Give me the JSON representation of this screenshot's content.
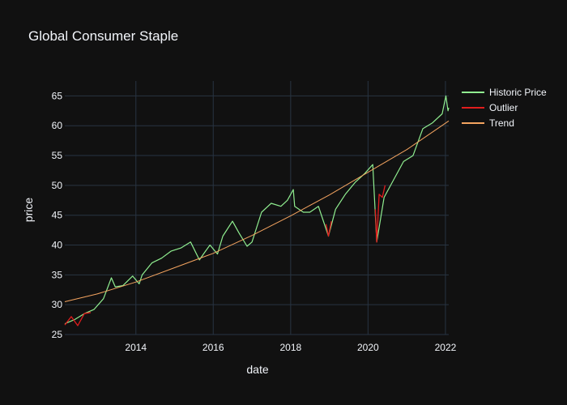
{
  "chart_data": {
    "type": "line",
    "title": "Global Consumer Staple",
    "xlabel": "date",
    "ylabel": "price",
    "x_ticks": [
      "2014",
      "2016",
      "2018",
      "2020",
      "2022"
    ],
    "y_ticks": [
      25,
      30,
      35,
      40,
      45,
      50,
      55,
      60,
      65
    ],
    "xlim": [
      "2012-03-01",
      "2022-02-01"
    ],
    "ylim": [
      25,
      67.5
    ],
    "grid": true,
    "legend_position": "top-right",
    "series": [
      {
        "name": "Historic Price",
        "color": "#90ee90",
        "x": [
          "2012-03-01",
          "2012-06-01",
          "2012-09-01",
          "2012-12-01",
          "2013-03-01",
          "2013-05-15",
          "2013-06-20",
          "2013-09-01",
          "2013-12-01",
          "2014-02-01",
          "2014-03-01",
          "2014-06-01",
          "2014-09-01",
          "2014-12-01",
          "2015-03-01",
          "2015-06-01",
          "2015-08-24",
          "2015-10-01",
          "2015-12-01",
          "2016-02-10",
          "2016-04-01",
          "2016-07-01",
          "2016-09-01",
          "2016-11-15",
          "2017-01-01",
          "2017-04-01",
          "2017-07-01",
          "2017-10-01",
          "2017-12-01",
          "2018-01-26",
          "2018-02-08",
          "2018-05-01",
          "2018-07-01",
          "2018-09-20",
          "2018-12-24",
          "2019-03-01",
          "2019-06-01",
          "2019-09-01",
          "2019-12-01",
          "2020-02-15",
          "2020-03-23",
          "2020-06-01",
          "2020-09-01",
          "2020-12-01",
          "2021-03-01",
          "2021-06-01",
          "2021-09-01",
          "2021-12-01",
          "2022-01-05",
          "2022-01-25",
          "2022-02-01"
        ],
        "y": [
          26.8,
          27.5,
          28.5,
          29.2,
          31.0,
          34.5,
          33.0,
          33.2,
          34.8,
          33.5,
          35.0,
          37.0,
          37.8,
          39.0,
          39.5,
          40.5,
          37.5,
          38.5,
          40.0,
          38.5,
          41.5,
          44.0,
          42.0,
          39.8,
          40.5,
          45.5,
          47.0,
          46.5,
          47.5,
          49.3,
          46.5,
          45.5,
          45.5,
          46.5,
          41.5,
          46.0,
          48.5,
          50.5,
          52.0,
          53.5,
          40.5,
          48.0,
          51.0,
          54.0,
          55.0,
          59.5,
          60.5,
          62.0,
          65.0,
          62.5,
          63.0
        ]
      },
      {
        "name": "Outlier",
        "color": "#e11d1d",
        "segments": [
          {
            "x": [
              "2012-03-01",
              "2012-05-01",
              "2012-07-01",
              "2012-09-01",
              "2012-11-01"
            ],
            "y": [
              26.6,
              28.0,
              26.5,
              28.5,
              28.7
            ]
          },
          {
            "x": [
              "2018-12-01",
              "2018-12-24",
              "2019-01-20"
            ],
            "y": [
              43.5,
              41.5,
              44.0
            ]
          },
          {
            "x": [
              "2020-03-10",
              "2020-03-23",
              "2020-04-15",
              "2020-05-15",
              "2020-06-10"
            ],
            "y": [
              46.0,
              40.5,
              48.5,
              48.0,
              50.0
            ]
          }
        ]
      },
      {
        "name": "Trend",
        "color": "#f4a460",
        "x": [
          "2012-03-01",
          "2013-01-01",
          "2014-01-01",
          "2015-01-01",
          "2016-01-01",
          "2017-01-01",
          "2018-01-01",
          "2019-01-01",
          "2020-01-01",
          "2021-01-01",
          "2022-02-01"
        ],
        "y": [
          30.5,
          31.8,
          33.8,
          36.2,
          38.6,
          41.6,
          44.9,
          48.4,
          52.2,
          56.0,
          60.8
        ]
      }
    ]
  }
}
